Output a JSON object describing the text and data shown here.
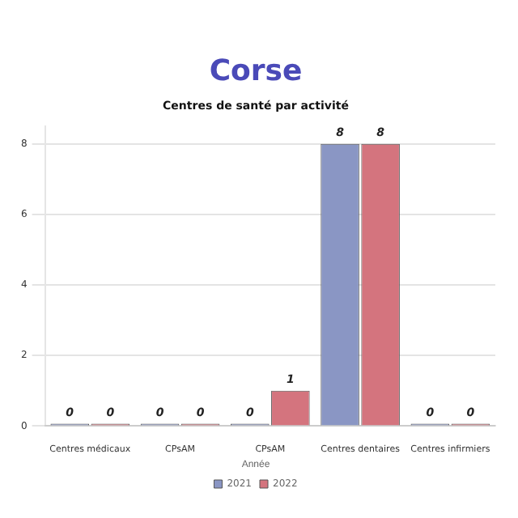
{
  "chart_data": {
    "type": "bar",
    "title": "Corse",
    "subtitle": "Centres de santé par activité",
    "categories": [
      "Centres médicaux",
      "CPsAM",
      "CPsAM",
      "Centres dentaires",
      "Centres infirmiers"
    ],
    "series": [
      {
        "name": "2021",
        "color": "#8a96c4",
        "values": [
          0,
          0,
          0,
          8,
          0
        ]
      },
      {
        "name": "2022",
        "color": "#d4747e",
        "values": [
          0,
          0,
          1,
          8,
          0
        ]
      }
    ],
    "ylim": [
      0,
      8.5
    ],
    "yticks": [
      0,
      2,
      4,
      6,
      8
    ],
    "grid": "y",
    "legend": "bottom",
    "legend_title": "Année",
    "data_labels": true
  }
}
